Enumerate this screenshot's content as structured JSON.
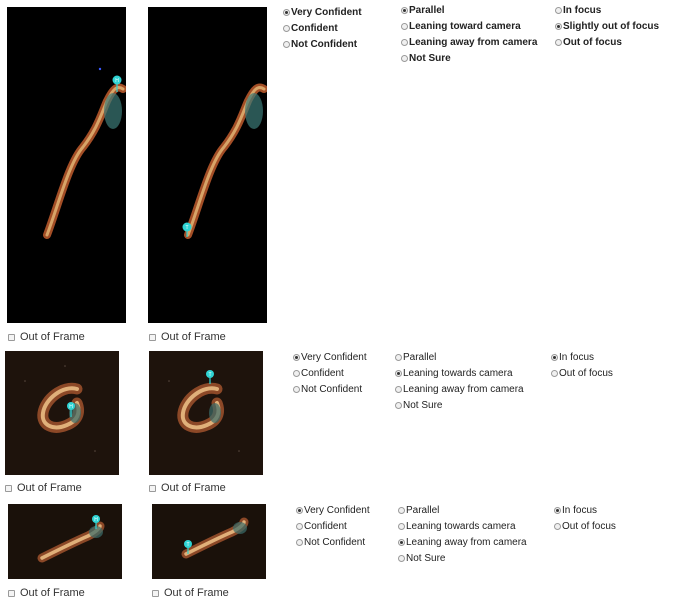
{
  "rows": [
    {
      "out_of_frame_label": "Out of Frame",
      "confidence": {
        "options": [
          "Very Confident",
          "Confident",
          "Not Confident"
        ],
        "selected": 0
      },
      "orientation": {
        "options": [
          "Parallel",
          "Leaning toward camera",
          "Leaning away from camera",
          "Not Sure"
        ],
        "selected": 0
      },
      "focus": {
        "options": [
          "In focus",
          "Slightly out of focus",
          "Out of focus"
        ],
        "selected": 1
      }
    },
    {
      "out_of_frame_label": "Out of Frame",
      "confidence": {
        "options": [
          "Very Confident",
          "Confident",
          "Not Confident"
        ],
        "selected": 0
      },
      "orientation": {
        "options": [
          "Parallel",
          "Leaning towards camera",
          "Leaning away from camera",
          "Not Sure"
        ],
        "selected": 1
      },
      "focus": {
        "options": [
          "In focus",
          "Out of focus"
        ],
        "selected": 0
      }
    },
    {
      "out_of_frame_label": "Out of Frame",
      "confidence": {
        "options": [
          "Very Confident",
          "Confident",
          "Not Confident"
        ],
        "selected": 0
      },
      "orientation": {
        "options": [
          "Parallel",
          "Leaning towards camera",
          "Leaning away from camera",
          "Not Sure"
        ],
        "selected": 2
      },
      "focus": {
        "options": [
          "In focus",
          "Out of focus"
        ],
        "selected": 0
      }
    }
  ],
  "markers": {
    "head": "H",
    "tail": "T"
  },
  "colors": {
    "radio_selected": "#333333",
    "marker": "#2fd4d4",
    "worm_glow": "#d7a468",
    "worm_edge": "#b5562a",
    "image_bg": "#000000",
    "image_bg_row2": "#1e130c"
  }
}
